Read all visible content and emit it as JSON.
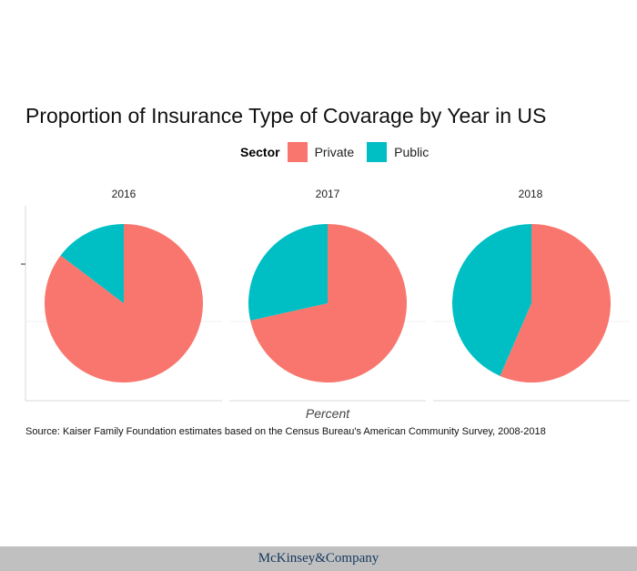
{
  "chart_data": {
    "type": "pie",
    "title": "Proportion of Insurance Type of Covarage by Year in US",
    "legend": {
      "title": "Sector",
      "position": "top",
      "entries": [
        "Private",
        "Public"
      ]
    },
    "colors": {
      "Private": "#f8766d",
      "Public": "#00bfc4"
    },
    "facets": [
      {
        "label": "2016",
        "values": {
          "Private": 0.853,
          "Public": 0.147
        }
      },
      {
        "label": "2017",
        "values": {
          "Private": 0.715,
          "Public": 0.285
        }
      },
      {
        "label": "2018",
        "values": {
          "Private": 0.565,
          "Public": 0.435
        }
      }
    ],
    "xlabel": "Percent",
    "ylabel": ""
  },
  "source": "Source: Kaiser Family Foundation estimates based on the Census Bureau's American Community Survey, 2008-2018",
  "footer": {
    "brand": "McKinsey&Company"
  }
}
